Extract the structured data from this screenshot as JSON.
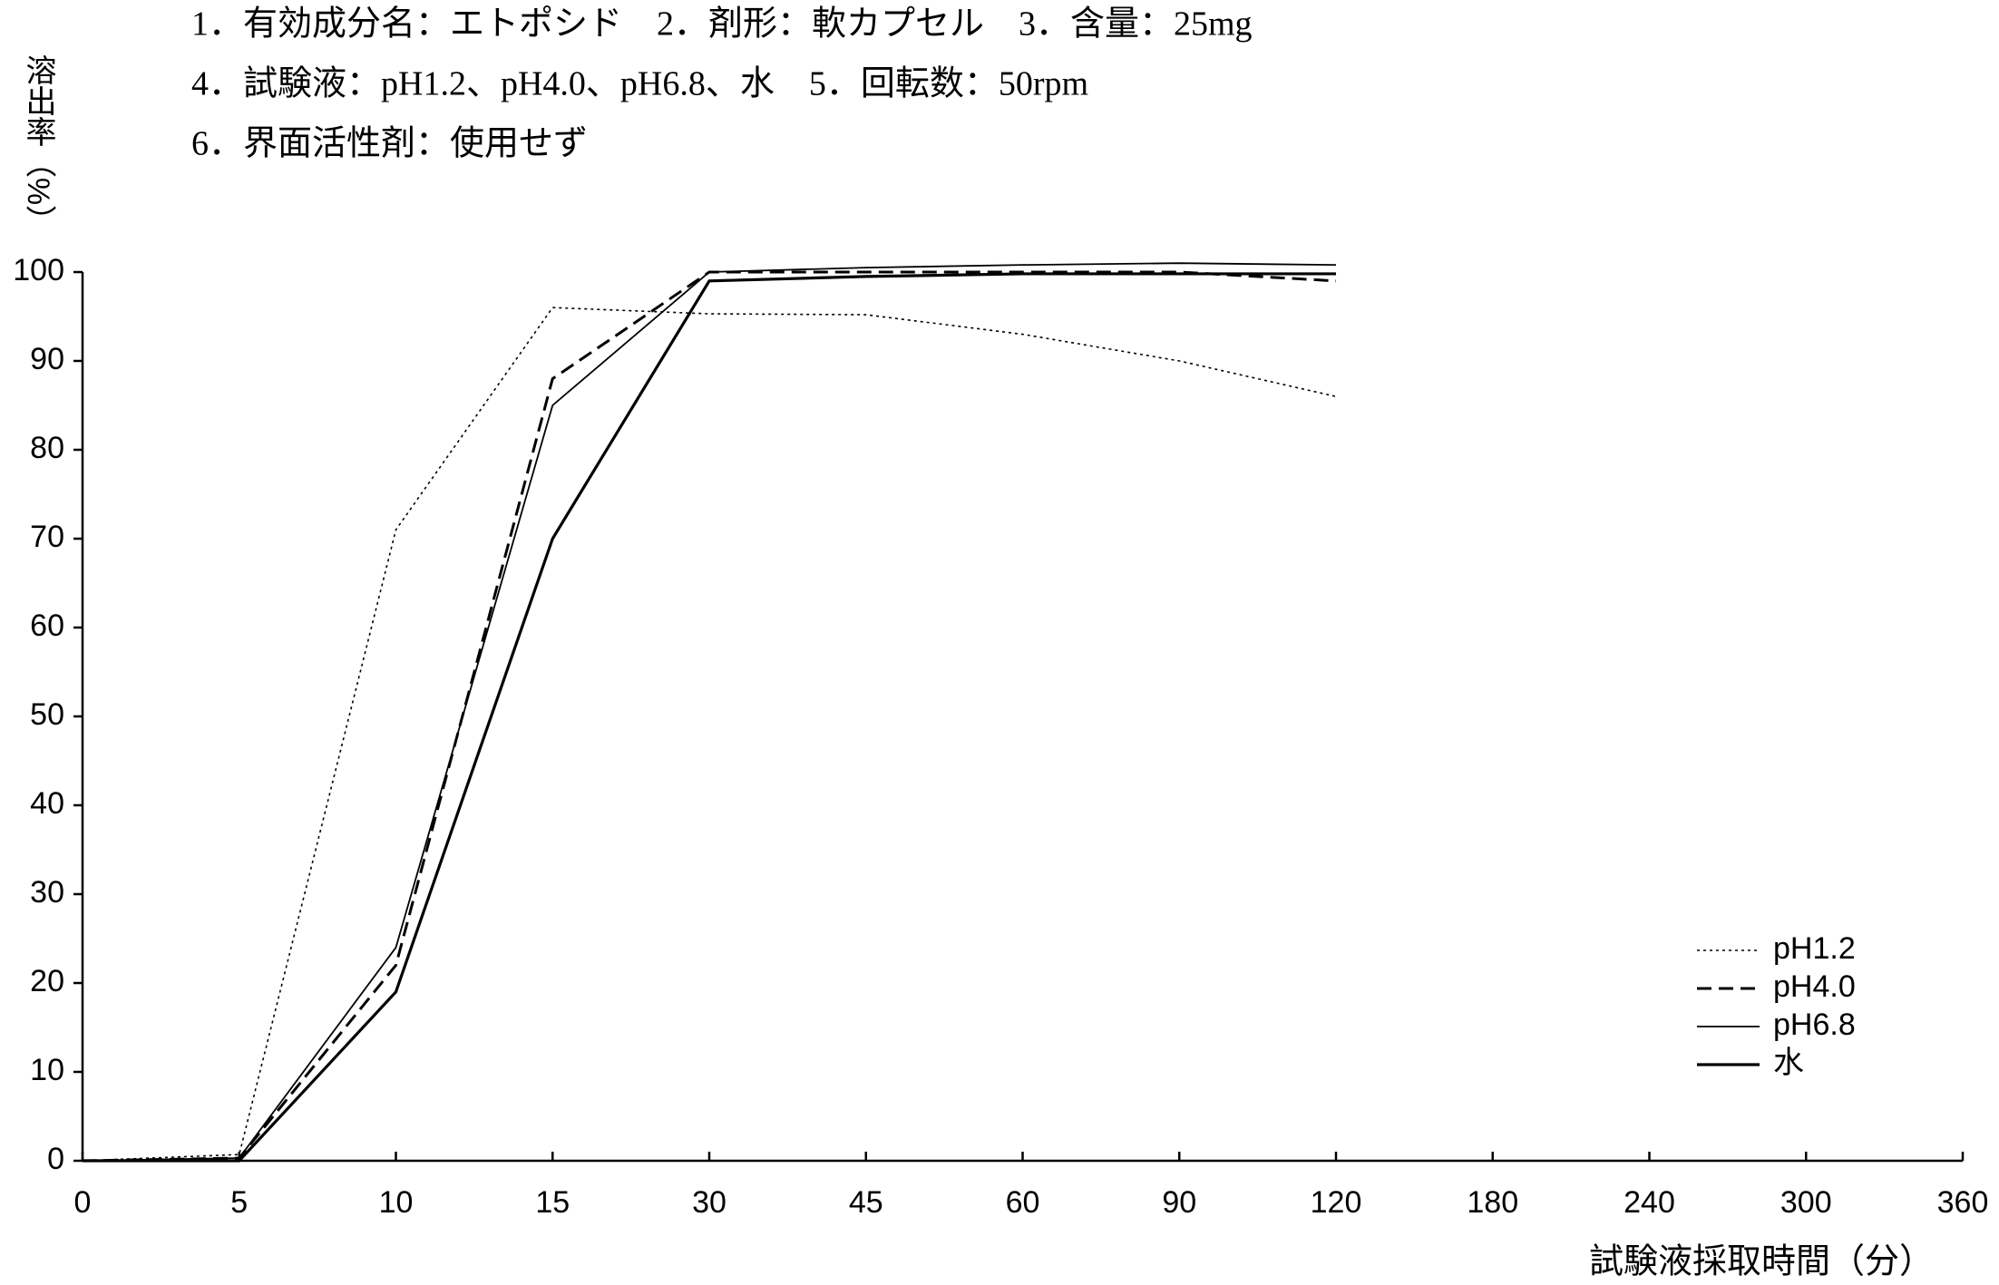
{
  "chart_data": {
    "type": "line",
    "title_lines": [
      "1．有効成分名：エトポシド　2．剤形：軟カプセル　3．含量：25mg",
      "4．試験液：pH1.2、pH4.0、pH6.8、水　5．回転数：50rpm",
      "6．界面活性剤：使用せず"
    ],
    "y_label": "溶出率（%）",
    "x_label": "試験液採取時間（分）",
    "categories": [
      0,
      5,
      10,
      15,
      30,
      45,
      60,
      90,
      120,
      180,
      240,
      300,
      360
    ],
    "ylim": [
      0,
      100
    ],
    "yticks": [
      0,
      10,
      20,
      30,
      40,
      50,
      60,
      70,
      80,
      90,
      100
    ],
    "legend": "lower right",
    "series": [
      {
        "name": "pH1.2",
        "color": "#000000",
        "dash": "dotted",
        "values": [
          0,
          0.7,
          71,
          96,
          95.3,
          95.2,
          93,
          90,
          86,
          null,
          null,
          null,
          null
        ]
      },
      {
        "name": "pH4.0",
        "color": "#000000",
        "dash": "dashed",
        "values": [
          0,
          0.3,
          22,
          88,
          100,
          100,
          100,
          100,
          99,
          null,
          null,
          null,
          null
        ]
      },
      {
        "name": "pH6.8",
        "color": "#000000",
        "dash": "solid",
        "values": [
          0,
          0.3,
          24,
          85,
          100,
          100.5,
          100.8,
          101,
          100.8,
          null,
          null,
          null,
          null
        ]
      },
      {
        "name": "水",
        "color": "#000000",
        "dash": "solid-thick",
        "values": [
          0,
          0,
          19,
          70,
          99,
          99.5,
          99.8,
          99.8,
          99.8,
          null,
          null,
          null,
          null
        ]
      }
    ]
  }
}
